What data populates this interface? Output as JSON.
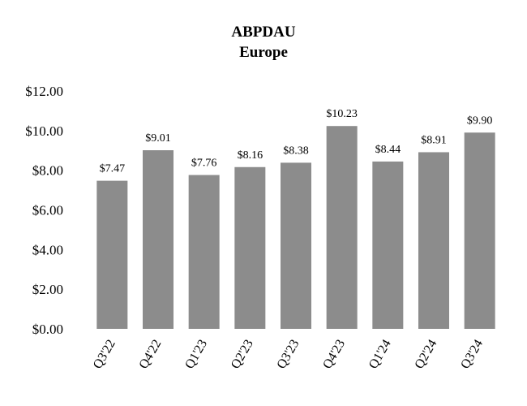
{
  "chart_data": {
    "type": "bar",
    "title": "ABPDAU",
    "subtitle": "Europe",
    "xlabel": "",
    "ylabel": "",
    "categories": [
      "Q3'22",
      "Q4'22",
      "Q1'23",
      "Q2'23",
      "Q3'23",
      "Q4'23",
      "Q1'24",
      "Q2'24",
      "Q3'24"
    ],
    "values": [
      7.47,
      9.01,
      7.76,
      8.16,
      8.38,
      10.23,
      8.44,
      8.91,
      9.9
    ],
    "data_labels": [
      "$7.47",
      "$9.01",
      "$7.76",
      "$8.16",
      "$8.38",
      "$10.23",
      "$8.44",
      "$8.91",
      "$9.90"
    ],
    "ylim": [
      0,
      12
    ],
    "yticks": [
      0,
      2,
      4,
      6,
      8,
      10,
      12
    ],
    "ytick_labels": [
      "$0.00",
      "$2.00",
      "$4.00",
      "$6.00",
      "$8.00",
      "$10.00",
      "$12.00"
    ],
    "grid": false,
    "legend": "none",
    "colors": {
      "bar": "#8c8c8c",
      "text": "#000000",
      "background": "#ffffff"
    }
  }
}
